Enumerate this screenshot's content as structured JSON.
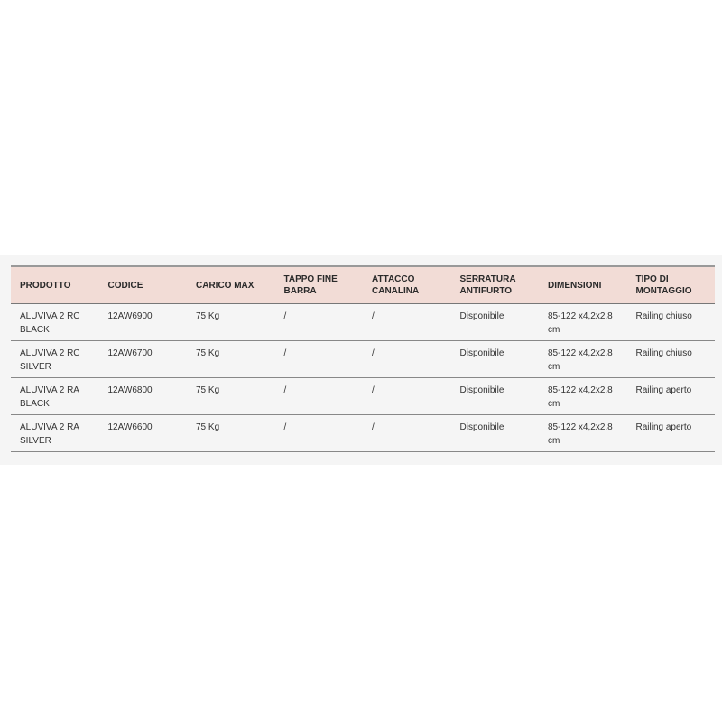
{
  "table": {
    "headers": [
      "PRODOTTO",
      "CODICE",
      "CARICO MAX",
      "TAPPO FINE BARRA",
      "ATTACCO CANALINA",
      "SERRATURA ANTIFURTO",
      "DIMENSIONI",
      "TIPO DI MONTAGGIO"
    ],
    "rows": [
      [
        "ALUVIVA 2 RC BLACK",
        "12AW6900",
        "75 Kg",
        "/",
        "/",
        "Disponibile",
        "85-122 x4,2x2,8 cm",
        "Railing chiuso"
      ],
      [
        "ALUVIVA 2 RC SILVER",
        "12AW6700",
        "75 Kg",
        "/",
        "/",
        "Disponibile",
        "85-122 x4,2x2,8 cm",
        "Railing chiuso"
      ],
      [
        "ALUVIVA 2 RA BLACK",
        "12AW6800",
        "75 Kg",
        "/",
        "/",
        "Disponibile",
        "85-122 x4,2x2,8 cm",
        "Railing aperto"
      ],
      [
        "ALUVIVA 2 RA SILVER",
        "12AW6600",
        "75 Kg",
        "/",
        "/",
        "Disponibile",
        "85-122 x4,2x2,8 cm",
        "Railing aperto"
      ]
    ]
  },
  "colors": {
    "header_bg": "#f2dcd6",
    "panel_bg": "#f5f5f5"
  }
}
